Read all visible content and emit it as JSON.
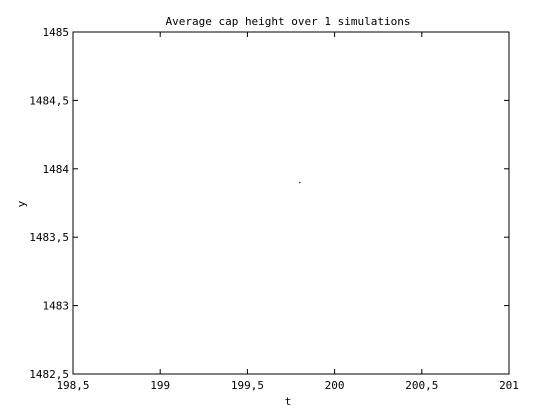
{
  "chart_data": {
    "type": "scatter",
    "title": "Average cap height over 1 simulations",
    "xlabel": "t",
    "ylabel": "y",
    "xlim": [
      198.5,
      201
    ],
    "ylim": [
      1482.5,
      1485
    ],
    "xticks": [
      198.5,
      199,
      199.5,
      200,
      200.5,
      201
    ],
    "yticks": [
      1482.5,
      1483,
      1483.5,
      1484,
      1484.5,
      1485
    ],
    "xtick_labels": [
      "198,5",
      "199",
      "199,5",
      "200",
      "200,5",
      "201"
    ],
    "ytick_labels": [
      "1482,5",
      "1483",
      "1483,5",
      "1484",
      "1484,5",
      "1485"
    ],
    "grid": false,
    "series": [
      {
        "x": [
          199.8
        ],
        "y": [
          1483.9
        ],
        "color": "#000000"
      }
    ]
  }
}
